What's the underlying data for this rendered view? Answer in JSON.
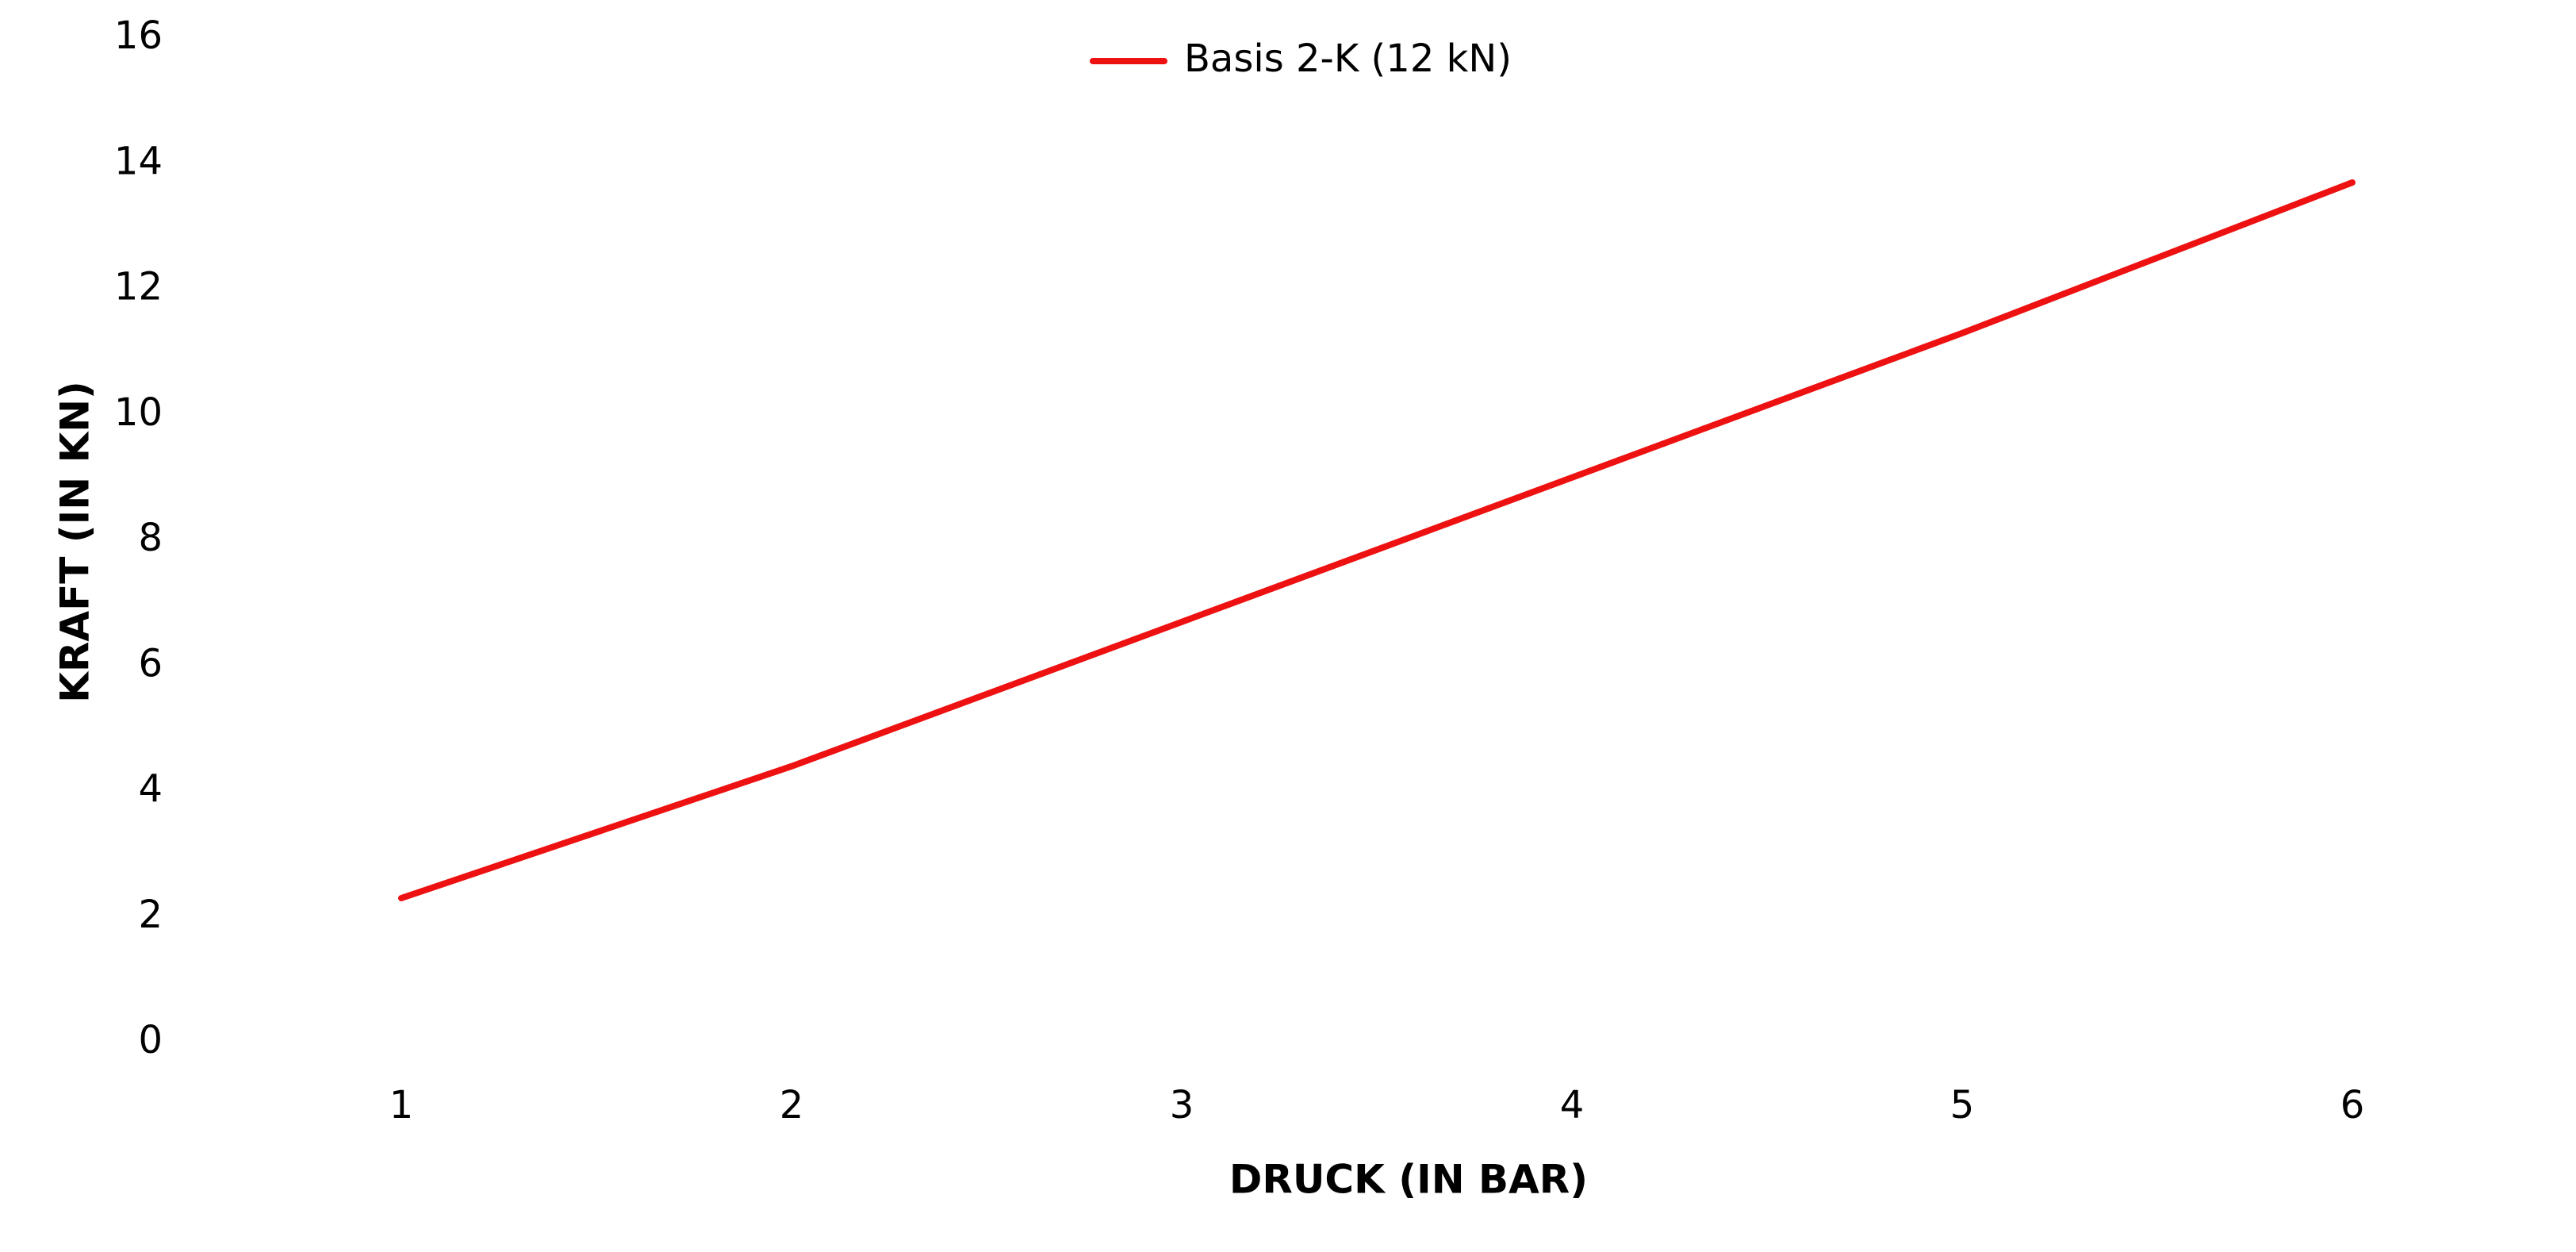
{
  "chart_data": {
    "type": "line",
    "x_label": "DRUCK (IN BAR)",
    "y_label": "KRAFT (IN KN)",
    "categories": [
      "1",
      "2",
      "3",
      "4",
      "5",
      "6"
    ],
    "series": [
      {
        "name": "Basis 2-K (12 kN)",
        "color": "#ee1111",
        "values": [
          2.3,
          4.4,
          6.7,
          9.0,
          11.3,
          13.7
        ]
      }
    ],
    "ylim": [
      0,
      16
    ],
    "yticks": [
      0,
      2,
      4,
      6,
      8,
      10,
      12,
      14,
      16
    ],
    "grid": false,
    "legend": "top"
  }
}
